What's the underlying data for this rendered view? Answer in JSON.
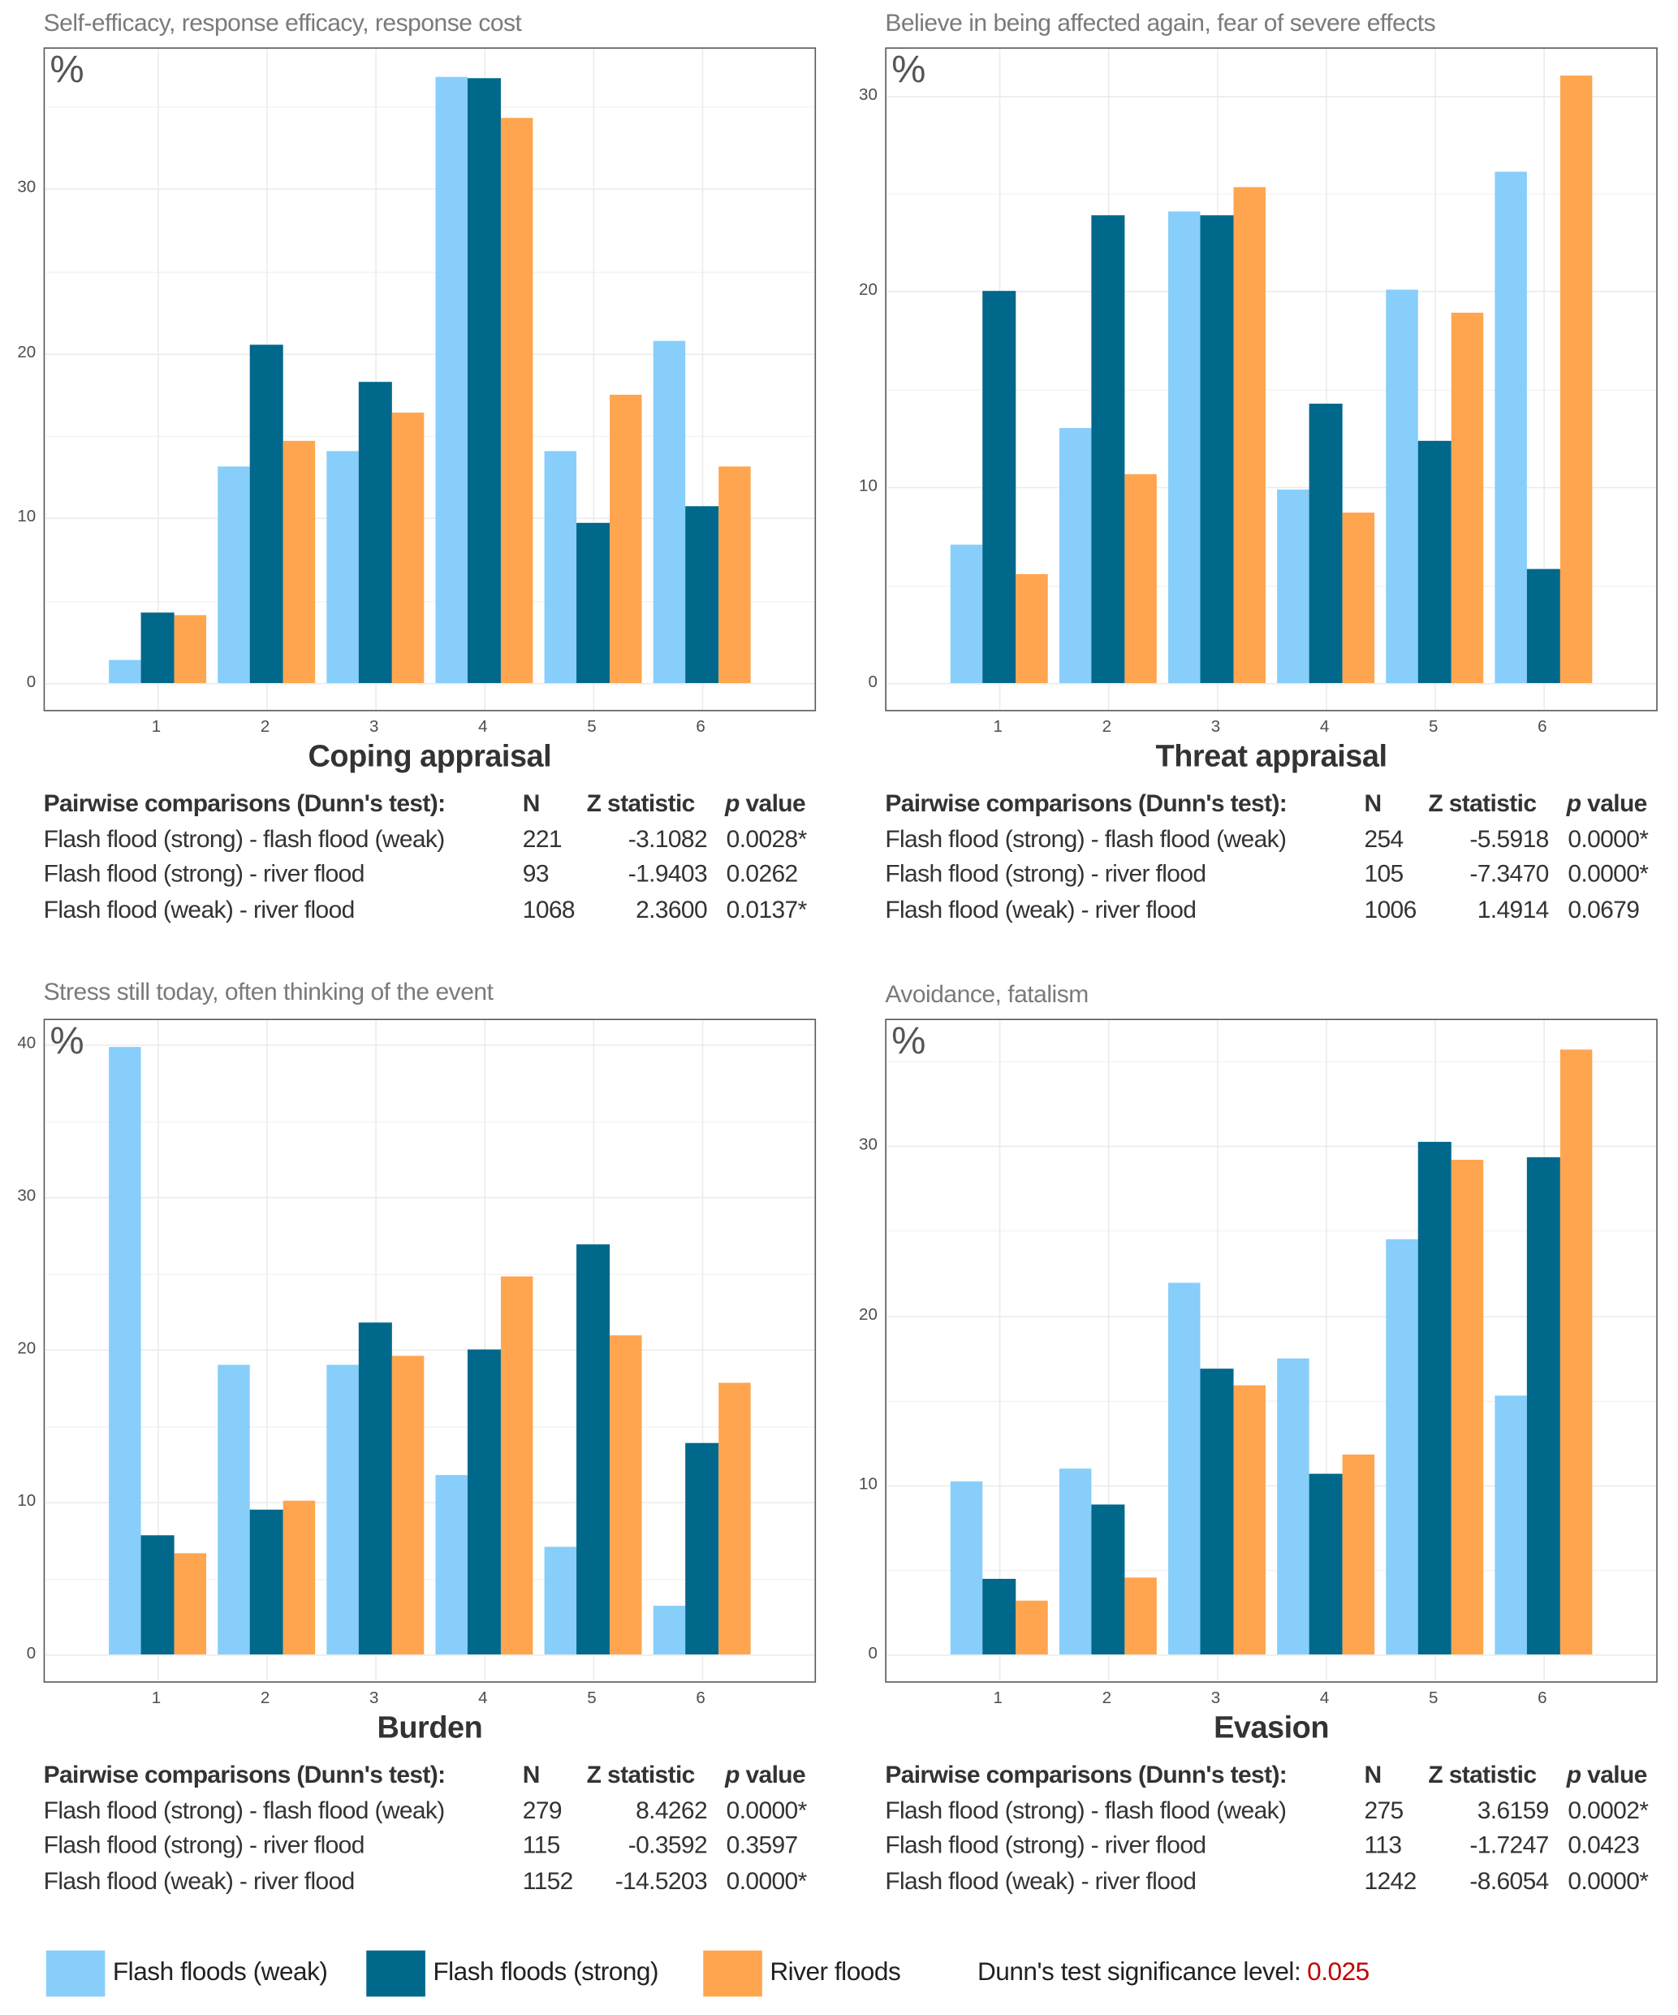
{
  "colors": {
    "weak": "#87CEFA",
    "strong": "#00688B",
    "river": "#FFA54F",
    "significance": "#C00000"
  },
  "legend": {
    "items": [
      {
        "key": "weak",
        "label": "Flash floods (weak)"
      },
      {
        "key": "strong",
        "label": "Flash floods (strong)"
      },
      {
        "key": "river",
        "label": "River floods"
      }
    ],
    "significance_label": "Dunn's test significance level:",
    "significance_value": "0.025"
  },
  "chart_data": [
    {
      "type": "bar",
      "title": "Self-efficacy, response efficacy, response cost",
      "ylabel": "%",
      "xlabel": "Coping appraisal",
      "categories": [
        "1",
        "2",
        "3",
        "4",
        "5",
        "6"
      ],
      "ylim": [
        -1.8,
        38.5
      ],
      "yticks": [
        "0",
        "10",
        "20",
        "30"
      ],
      "grid": true,
      "series": [
        {
          "name": "Flash floods (weak)",
          "key": "weak",
          "values": [
            1.4,
            13.1,
            14.1,
            36.8,
            14.1,
            20.8
          ]
        },
        {
          "name": "Flash floods (strong)",
          "key": "strong",
          "values": [
            4.3,
            20.5,
            18.3,
            36.7,
            9.7,
            10.7
          ]
        },
        {
          "name": "River floods",
          "key": "river",
          "values": [
            4.1,
            14.7,
            16.4,
            34.3,
            17.5,
            13.1
          ]
        }
      ],
      "table": {
        "header": [
          "Pairwise comparisons (Dunn's test):",
          "N",
          "Z statistic",
          "p",
          " value"
        ],
        "rows": [
          [
            "Flash flood (strong) -  flash flood (weak)",
            "221",
            "-3.1082",
            "0.0028*"
          ],
          [
            "Flash flood (strong) -  river flood",
            "93",
            "-1.9403",
            "0.0262"
          ],
          [
            "Flash flood (weak) -  river flood",
            "1068",
            "2.3600",
            "0.0137*"
          ]
        ]
      }
    },
    {
      "type": "bar",
      "title": "Believe in being affected again, fear of severe effects",
      "ylabel": "%",
      "xlabel": "Threat appraisal",
      "categories": [
        "1",
        "2",
        "3",
        "4",
        "5",
        "6"
      ],
      "ylim": [
        -1.5,
        32.4
      ],
      "yticks": [
        "0",
        "10",
        "20",
        "30"
      ],
      "grid": true,
      "series": [
        {
          "name": "Flash floods (weak)",
          "key": "weak",
          "values": [
            7.1,
            13.0,
            24.1,
            9.9,
            20.1,
            26.1
          ]
        },
        {
          "name": "Flash floods (strong)",
          "key": "strong",
          "values": [
            20.0,
            23.9,
            23.9,
            14.3,
            12.4,
            5.8
          ]
        },
        {
          "name": "River floods",
          "key": "river",
          "values": [
            5.6,
            10.7,
            25.3,
            8.7,
            18.9,
            31.0
          ]
        }
      ],
      "table": {
        "header": [
          "Pairwise comparisons (Dunn's test):",
          "N",
          "Z statistic",
          "p",
          " value"
        ],
        "rows": [
          [
            "Flash flood (strong) -  flash flood (weak)",
            "254",
            "-5.5918",
            "0.0000*"
          ],
          [
            "Flash flood (strong) -  river flood",
            "105",
            "-7.3470",
            "0.0000*"
          ],
          [
            "Flash flood (weak) -  river flood",
            "1006",
            "1.4914",
            "0.0679"
          ]
        ]
      }
    },
    {
      "type": "bar",
      "title": "Stress still today, often thinking of the event",
      "ylabel": "%",
      "xlabel": "Burden",
      "categories": [
        "1",
        "2",
        "3",
        "4",
        "5",
        "6"
      ],
      "ylim": [
        -1.9,
        41.6
      ],
      "yticks": [
        "0",
        "10",
        "20",
        "30",
        "40"
      ],
      "grid": true,
      "series": [
        {
          "name": "Flash floods (weak)",
          "key": "weak",
          "values": [
            39.8,
            19.0,
            19.0,
            11.8,
            7.1,
            3.2
          ]
        },
        {
          "name": "Flash floods (strong)",
          "key": "strong",
          "values": [
            7.8,
            9.5,
            21.8,
            20.0,
            26.9,
            13.9
          ]
        },
        {
          "name": "River floods",
          "key": "river",
          "values": [
            6.7,
            10.1,
            19.6,
            24.8,
            20.9,
            17.8
          ]
        }
      ],
      "table": {
        "header": [
          "Pairwise comparisons (Dunn's test):",
          "N",
          "Z statistic",
          "p",
          " value"
        ],
        "rows": [
          [
            "Flash flood (strong) -  flash flood (weak)",
            "279",
            "8.4262",
            "0.0000*"
          ],
          [
            "Flash flood (strong) -  river flood",
            "115",
            "-0.3592",
            "0.3597"
          ],
          [
            "Flash flood (weak) -  river flood",
            "1152",
            "-14.5203",
            "0.0000*"
          ]
        ]
      }
    },
    {
      "type": "bar",
      "title": "Avoidance, fatalism",
      "ylabel": "%",
      "xlabel": "Evasion",
      "categories": [
        "1",
        "2",
        "3",
        "4",
        "5",
        "6"
      ],
      "ylim": [
        -1.7,
        37.4
      ],
      "yticks": [
        "0",
        "10",
        "20",
        "30"
      ],
      "grid": true,
      "series": [
        {
          "name": "Flash floods (weak)",
          "key": "weak",
          "values": [
            10.2,
            11.0,
            21.9,
            17.5,
            24.5,
            15.3
          ]
        },
        {
          "name": "Flash floods (strong)",
          "key": "strong",
          "values": [
            4.5,
            8.9,
            16.9,
            10.7,
            30.2,
            29.3
          ]
        },
        {
          "name": "River floods",
          "key": "river",
          "values": [
            3.2,
            4.6,
            15.9,
            11.8,
            29.2,
            35.7
          ]
        }
      ],
      "table": {
        "header": [
          "Pairwise comparisons (Dunn's test):",
          "N",
          "Z statistic",
          "p",
          " value"
        ],
        "rows": [
          [
            "Flash flood (strong) -  flash flood (weak)",
            "275",
            "3.6159",
            "0.0002*"
          ],
          [
            "Flash flood (strong) -  river flood",
            "113",
            "-1.7247",
            "0.0423"
          ],
          [
            "Flash flood (weak) -  river flood",
            "1242",
            "-8.6054",
            "0.0000*"
          ]
        ]
      }
    }
  ]
}
